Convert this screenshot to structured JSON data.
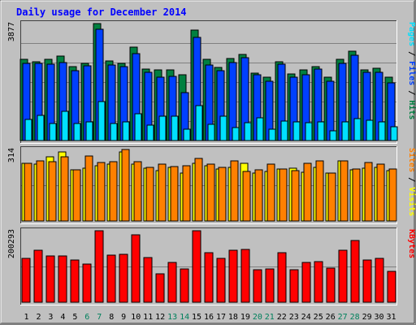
{
  "chart_data": {
    "title": "Daily usage for December 2014",
    "type": "bar",
    "categories": [
      "1",
      "2",
      "3",
      "4",
      "5",
      "6",
      "7",
      "8",
      "9",
      "10",
      "11",
      "12",
      "13",
      "14",
      "15",
      "16",
      "17",
      "18",
      "19",
      "20",
      "21",
      "22",
      "23",
      "24",
      "25",
      "26",
      "27",
      "28",
      "29",
      "30",
      "31"
    ],
    "weekend_days": [
      "6",
      "7",
      "13",
      "14",
      "20",
      "21",
      "27",
      "28"
    ],
    "panels": [
      {
        "name": "hits-files-pages",
        "max_label": "3877",
        "ymax": 3877,
        "legend": [
          "Pages",
          "/",
          "Files",
          "/",
          "Hits"
        ],
        "series": [
          {
            "name": "Hits",
            "color": "#008040",
            "values": [
              2690,
              2610,
              2690,
              2800,
              2440,
              2560,
              3877,
              2630,
              2560,
              3090,
              2380,
              2340,
              2340,
              2190,
              3650,
              2690,
              2420,
              2720,
              2860,
              2230,
              2100,
              2610,
              2210,
              2340,
              2440,
              2100,
              2690,
              2960,
              2340,
              2400,
              2090
            ]
          },
          {
            "name": "Files",
            "color": "#0040ff",
            "values": [
              2550,
              2550,
              2530,
              2580,
              2310,
              2480,
              3680,
              2500,
              2460,
              2890,
              2250,
              2100,
              2130,
              1580,
              3430,
              2500,
              2320,
              2580,
              2750,
              2170,
              1970,
              2520,
              2100,
              2180,
              2360,
              1970,
              2550,
              2820,
              2250,
              2270,
              1920
            ]
          },
          {
            "name": "Pages",
            "color": "#00e0ff",
            "values": [
              690,
              830,
              570,
              960,
              560,
              610,
              1290,
              570,
              630,
              880,
              500,
              810,
              800,
              380,
              1150,
              550,
              800,
              430,
              600,
              750,
              390,
              650,
              630,
              590,
              610,
              330,
              630,
              740,
              660,
              620,
              470
            ]
          }
        ]
      },
      {
        "name": "visits-sites",
        "max_label": "314",
        "ymax": 314,
        "legend": [
          "Sites",
          "/",
          "Visits"
        ],
        "series": [
          {
            "name": "Visits",
            "color": "#ffff00",
            "values": [
              254,
              251,
              282,
              303,
              224,
              233,
              244,
              248,
              303,
              249,
              233,
              223,
              235,
              212,
              254,
              244,
              227,
              236,
              252,
              209,
              218,
              228,
              232,
              215,
              234,
              210,
              264,
              225,
              233,
              236,
              221
            ]
          },
          {
            "name": "Sites",
            "color": "#ff8000",
            "values": [
              255,
              264,
              262,
              283,
              224,
              287,
              256,
              262,
              314,
              259,
              235,
              249,
              239,
              243,
              274,
              248,
              234,
              264,
              217,
              225,
              250,
              228,
              223,
              252,
              264,
              212,
              264,
              230,
              256,
              248,
              230
            ]
          }
        ]
      },
      {
        "name": "kbytes",
        "max_label": "200293",
        "ymax": 200293,
        "legend": [
          "KBytes"
        ],
        "series": [
          {
            "name": "KBytes",
            "color": "#ff0000",
            "values": [
              123380,
              145670,
              130270,
              130270,
              117920,
              106220,
              200293,
              131200,
              134470,
              189030,
              125600,
              79350,
              111270,
              94200,
              200293,
              138500,
              122980,
              145700,
              148060,
              91800,
              92720,
              139530,
              91800,
              111900,
              114120,
              95400,
              145700,
              173100,
              117720,
              122980,
              85360
            ]
          }
        ]
      }
    ]
  },
  "colors": {
    "background": "#c0c0c0",
    "panel": "#c0c0c0",
    "title": "#0000ff",
    "weekend_label": "#00805c",
    "weekday_label": "#000000",
    "grid": "#808080"
  }
}
